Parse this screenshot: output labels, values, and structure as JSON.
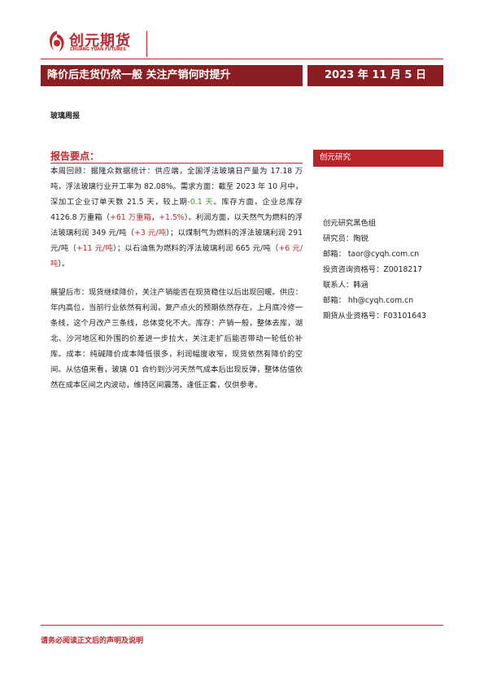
{
  "header": {
    "logo_cn": "创元期货",
    "logo_en": "CHUANG YUAN FUTURES"
  },
  "banner": {
    "title": "降价后走货仍然一般 关注产销何时提升",
    "date": "2023 年 11 月 5 日"
  },
  "category": "玻璃周报",
  "summary": {
    "heading": "报告要点：",
    "paragraphs": [
      [
        {
          "text": "本周回顾：据隆众数据统计：供应端，全国浮法玻璃日产量为 17.18 万吨，浮法玻璃行业开工率为 82.08%。需求方面：截至 2023 年 10 月中，深加工企业订单天数 21.5 天，较上期"
        },
        {
          "text": "-0.1 天",
          "color": "#3a9a3a"
        },
        {
          "text": "。库存方面，企业总库存 4126.8 万重箱（"
        },
        {
          "text": "+61 万重箱",
          "color": "#c0282d"
        },
        {
          "text": "，"
        },
        {
          "text": "+1.5%",
          "color": "#c0282d"
        },
        {
          "text": "）。利润方面，以天然气为燃料的浮法玻璃利润 349 元/吨（"
        },
        {
          "text": "+3 元/吨",
          "color": "#c0282d"
        },
        {
          "text": "）；以煤制气为燃料的浮法玻璃利润 291 元/吨（"
        },
        {
          "text": "+11 元/吨",
          "color": "#c0282d"
        },
        {
          "text": "）；以石油焦为燃料的浮法玻璃利润 665 元/吨（"
        },
        {
          "text": "+6 元/吨",
          "color": "#c0282d"
        },
        {
          "text": "）。"
        }
      ],
      [
        {
          "text": "展望后市：现货继续降价，关注产销能否在现货稳住以后出现回暖。供应：年内高位，当前行业依然有利润，复产点火的预期依然存在，上月底冷修一条线，这个月改产三条线，总体变化不大。库存：产销一般，整体去库，湖北、沙河地区和外围的价差进一步拉大，关注走扩后能否带动一轮低价补库。成本：纯碱降价成本降低很多，利润幅度收窄，现货依然有降价的空间。从估值来看，玻璃 01 合约到沙河天然气成本后出现反弹，整体估值依然在成本区间之内波动，维持区间震荡，逢低正套，仅供参考。"
        }
      ]
    ]
  },
  "sidebar": {
    "label": "创元研究",
    "lines": [
      "创元研究黑色组",
      "研究员：陶锐",
      "邮箱： taor@cyqh.com.cn",
      "投资咨询资格号：Z0018217",
      "联系人：韩涵",
      "邮箱： hh@cyqh.com.cn",
      "期货从业资格号：F03101643"
    ]
  },
  "footer": "请务必阅读正文后的声明及说明"
}
